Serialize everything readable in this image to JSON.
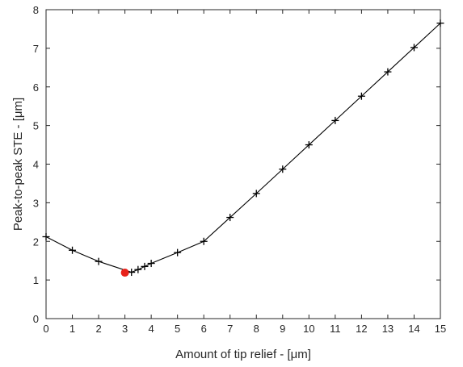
{
  "chart_data": {
    "type": "line",
    "xlabel": "Amount of tip relief - [μm]",
    "ylabel": "Peak-to-peak STE - [μm]",
    "xlim": [
      0,
      15
    ],
    "ylim": [
      0,
      8
    ],
    "xticks": [
      "0",
      "1",
      "2",
      "3",
      "4",
      "5",
      "6",
      "7",
      "8",
      "9",
      "10",
      "11",
      "12",
      "13",
      "14",
      "15"
    ],
    "yticks": [
      "0",
      "1",
      "2",
      "3",
      "4",
      "5",
      "6",
      "7",
      "8"
    ],
    "grid": false,
    "series": [
      {
        "marker": "+",
        "color": "#000000",
        "x": [
          0,
          1,
          2,
          3.25,
          3.5,
          3.75,
          4,
          5,
          6,
          7,
          8,
          9,
          10,
          11,
          12,
          13,
          14,
          15
        ],
        "y": [
          2.12,
          1.77,
          1.48,
          1.2,
          1.27,
          1.35,
          1.43,
          1.71,
          2.0,
          2.62,
          3.24,
          3.87,
          4.5,
          5.13,
          5.76,
          6.39,
          7.02,
          7.65
        ]
      }
    ],
    "highlight": {
      "x": 3,
      "y": 1.19,
      "color": "#e8221b"
    }
  }
}
